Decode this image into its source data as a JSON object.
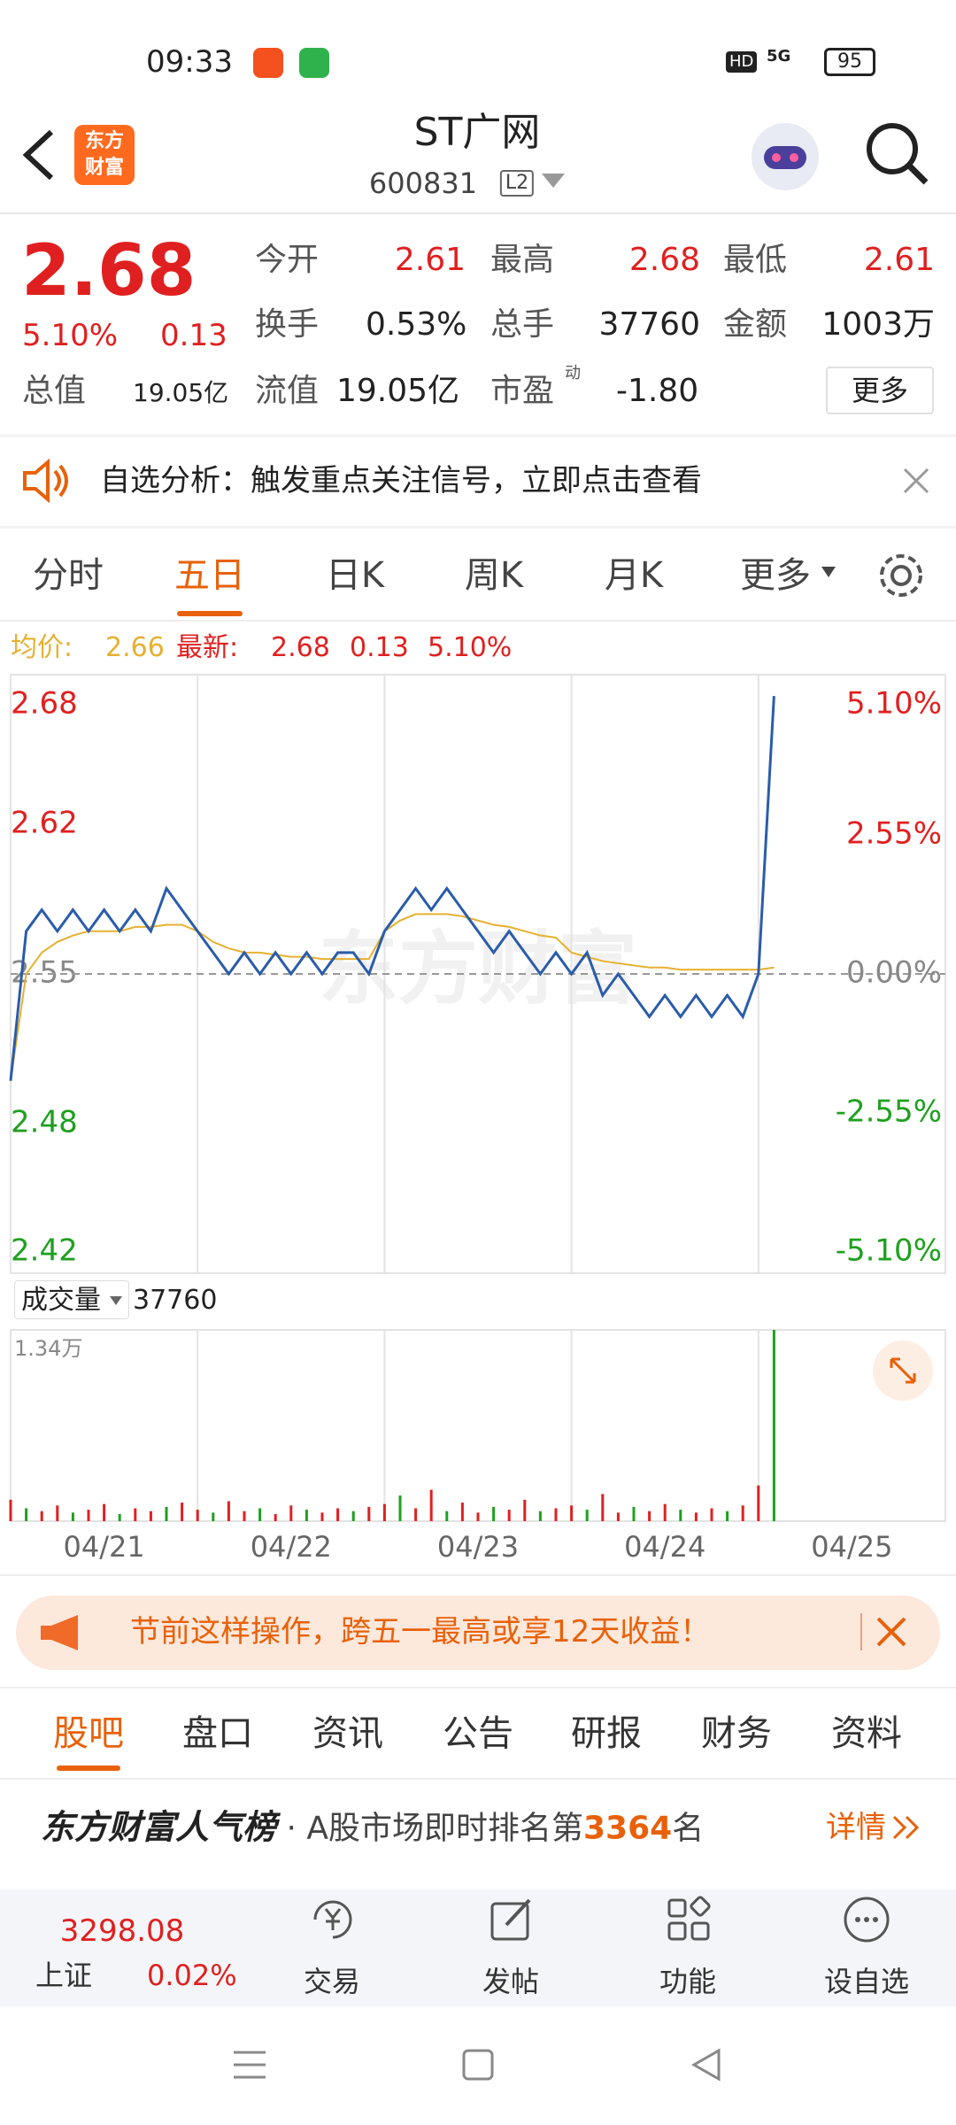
{
  "status_bar": {
    "time": "09:33",
    "hd": "HD",
    "signal": "5G",
    "battery": "95"
  },
  "header": {
    "logo": [
      "东方",
      "财富"
    ],
    "title": "ST广网",
    "code": "600831",
    "level": "L2"
  },
  "quote": {
    "price": "2.68",
    "change_pct": "5.10%",
    "change": "0.13",
    "total_value_label": "总值",
    "total_value": "19.05亿",
    "fields": [
      {
        "label": "今开",
        "value": "2.61"
      },
      {
        "label": "最高",
        "value": "2.68"
      },
      {
        "label": "最低",
        "value": "2.61"
      },
      {
        "label": "换手",
        "value": "0.53%"
      },
      {
        "label": "总手",
        "value": "37760"
      },
      {
        "label": "金额",
        "value": "1003万"
      },
      {
        "label": "流值",
        "value": "19.05亿"
      },
      {
        "label": "市盈",
        "superscript": "动",
        "value": "-1.80"
      }
    ],
    "more": "更多"
  },
  "notice": "自选分析：触发重点关注信号，立即点击查看",
  "tabs": [
    "分时",
    "五日",
    "日K",
    "周K",
    "月K",
    "更多"
  ],
  "info_line": {
    "avg_label": "均价:",
    "avg": "2.66",
    "last_label": "最新:",
    "last": "2.68",
    "change": "0.13",
    "change_pct": "5.10%"
  },
  "watermark": "东方财富",
  "chart_data": [
    {
      "type": "line",
      "ylim": [
        2.41,
        2.69
      ],
      "yticks": [
        2.68,
        2.62,
        2.55,
        2.48,
        2.42
      ],
      "y2lim": [
        -5.49,
        5.49
      ],
      "y2ticks": [
        {
          "value": 5.1,
          "label": "5.10%"
        },
        {
          "value": 2.55,
          "label": "2.55%"
        },
        {
          "value": 0,
          "label": "0.00%"
        },
        {
          "value": -2.55,
          "label": "-2.55%"
        },
        {
          "value": -5.1,
          "label": "-5.10%"
        }
      ],
      "series": [
        {
          "color": "#2a5caa",
          "values": [
            2.5,
            2.57,
            2.58,
            2.57,
            2.58,
            2.57,
            2.58,
            2.57,
            2.58,
            2.57,
            2.59,
            2.58,
            2.57,
            2.56,
            2.55,
            2.56,
            2.55,
            2.56,
            2.55,
            2.56,
            2.55,
            2.56,
            2.56,
            2.55,
            2.57,
            2.58,
            2.59,
            2.58,
            2.59,
            2.58,
            2.57,
            2.56,
            2.57,
            2.56,
            2.55,
            2.56,
            2.55,
            2.56,
            2.54,
            2.55,
            2.54,
            2.53,
            2.54,
            2.53,
            2.54,
            2.53,
            2.54,
            2.53,
            2.55,
            2.68
          ]
        },
        {
          "color": "#e6b030",
          "values": [
            2.5,
            2.55,
            2.56,
            2.565,
            2.568,
            2.57,
            2.57,
            2.57,
            2.572,
            2.572,
            2.573,
            2.573,
            2.57,
            2.565,
            2.562,
            2.56,
            2.56,
            2.559,
            2.558,
            2.558,
            2.557,
            2.557,
            2.557,
            2.557,
            2.57,
            2.575,
            2.578,
            2.578,
            2.578,
            2.577,
            2.575,
            2.573,
            2.572,
            2.57,
            2.568,
            2.567,
            2.56,
            2.558,
            2.556,
            2.555,
            2.554,
            2.553,
            2.553,
            2.552,
            2.552,
            2.552,
            2.552,
            2.552,
            2.552,
            2.553
          ]
        }
      ]
    },
    {
      "type": "bar",
      "title": "成交量",
      "total": "37760",
      "max_label": "1.34万",
      "ylim": [
        0,
        13400
      ],
      "color": "#e02020",
      "down_color": "#1fa01f",
      "values": [
        1500,
        900,
        700,
        1100,
        600,
        800,
        1200,
        500,
        900,
        700,
        1000,
        1300,
        800,
        600,
        1400,
        700,
        900,
        500,
        1100,
        800,
        600,
        900,
        700,
        1000,
        1200,
        1800,
        900,
        2200,
        700,
        1300,
        600,
        1000,
        800,
        1500,
        700,
        900,
        1100,
        800,
        1900,
        600,
        1000,
        700,
        1200,
        800,
        600,
        900,
        700,
        1100,
        2500,
        13400
      ]
    }
  ],
  "date_axis": [
    "04/21",
    "04/22",
    "04/23",
    "04/24",
    "04/25"
  ],
  "ad": "节前这样操作，跨五一最高或享12天收益！",
  "sub_tabs": [
    "股吧",
    "盘口",
    "资讯",
    "公告",
    "研报",
    "财务",
    "资料"
  ],
  "ranking": {
    "brand": "东方财富人气榜",
    "text": "· A股市场即时排名第",
    "rank": "3364",
    "suffix": "名",
    "details": "详情"
  },
  "toolbar": {
    "index_value": "3298.08",
    "index_name": "上证",
    "index_change": "0.02%",
    "buttons": [
      "交易",
      "发帖",
      "功能",
      "设自选"
    ]
  }
}
